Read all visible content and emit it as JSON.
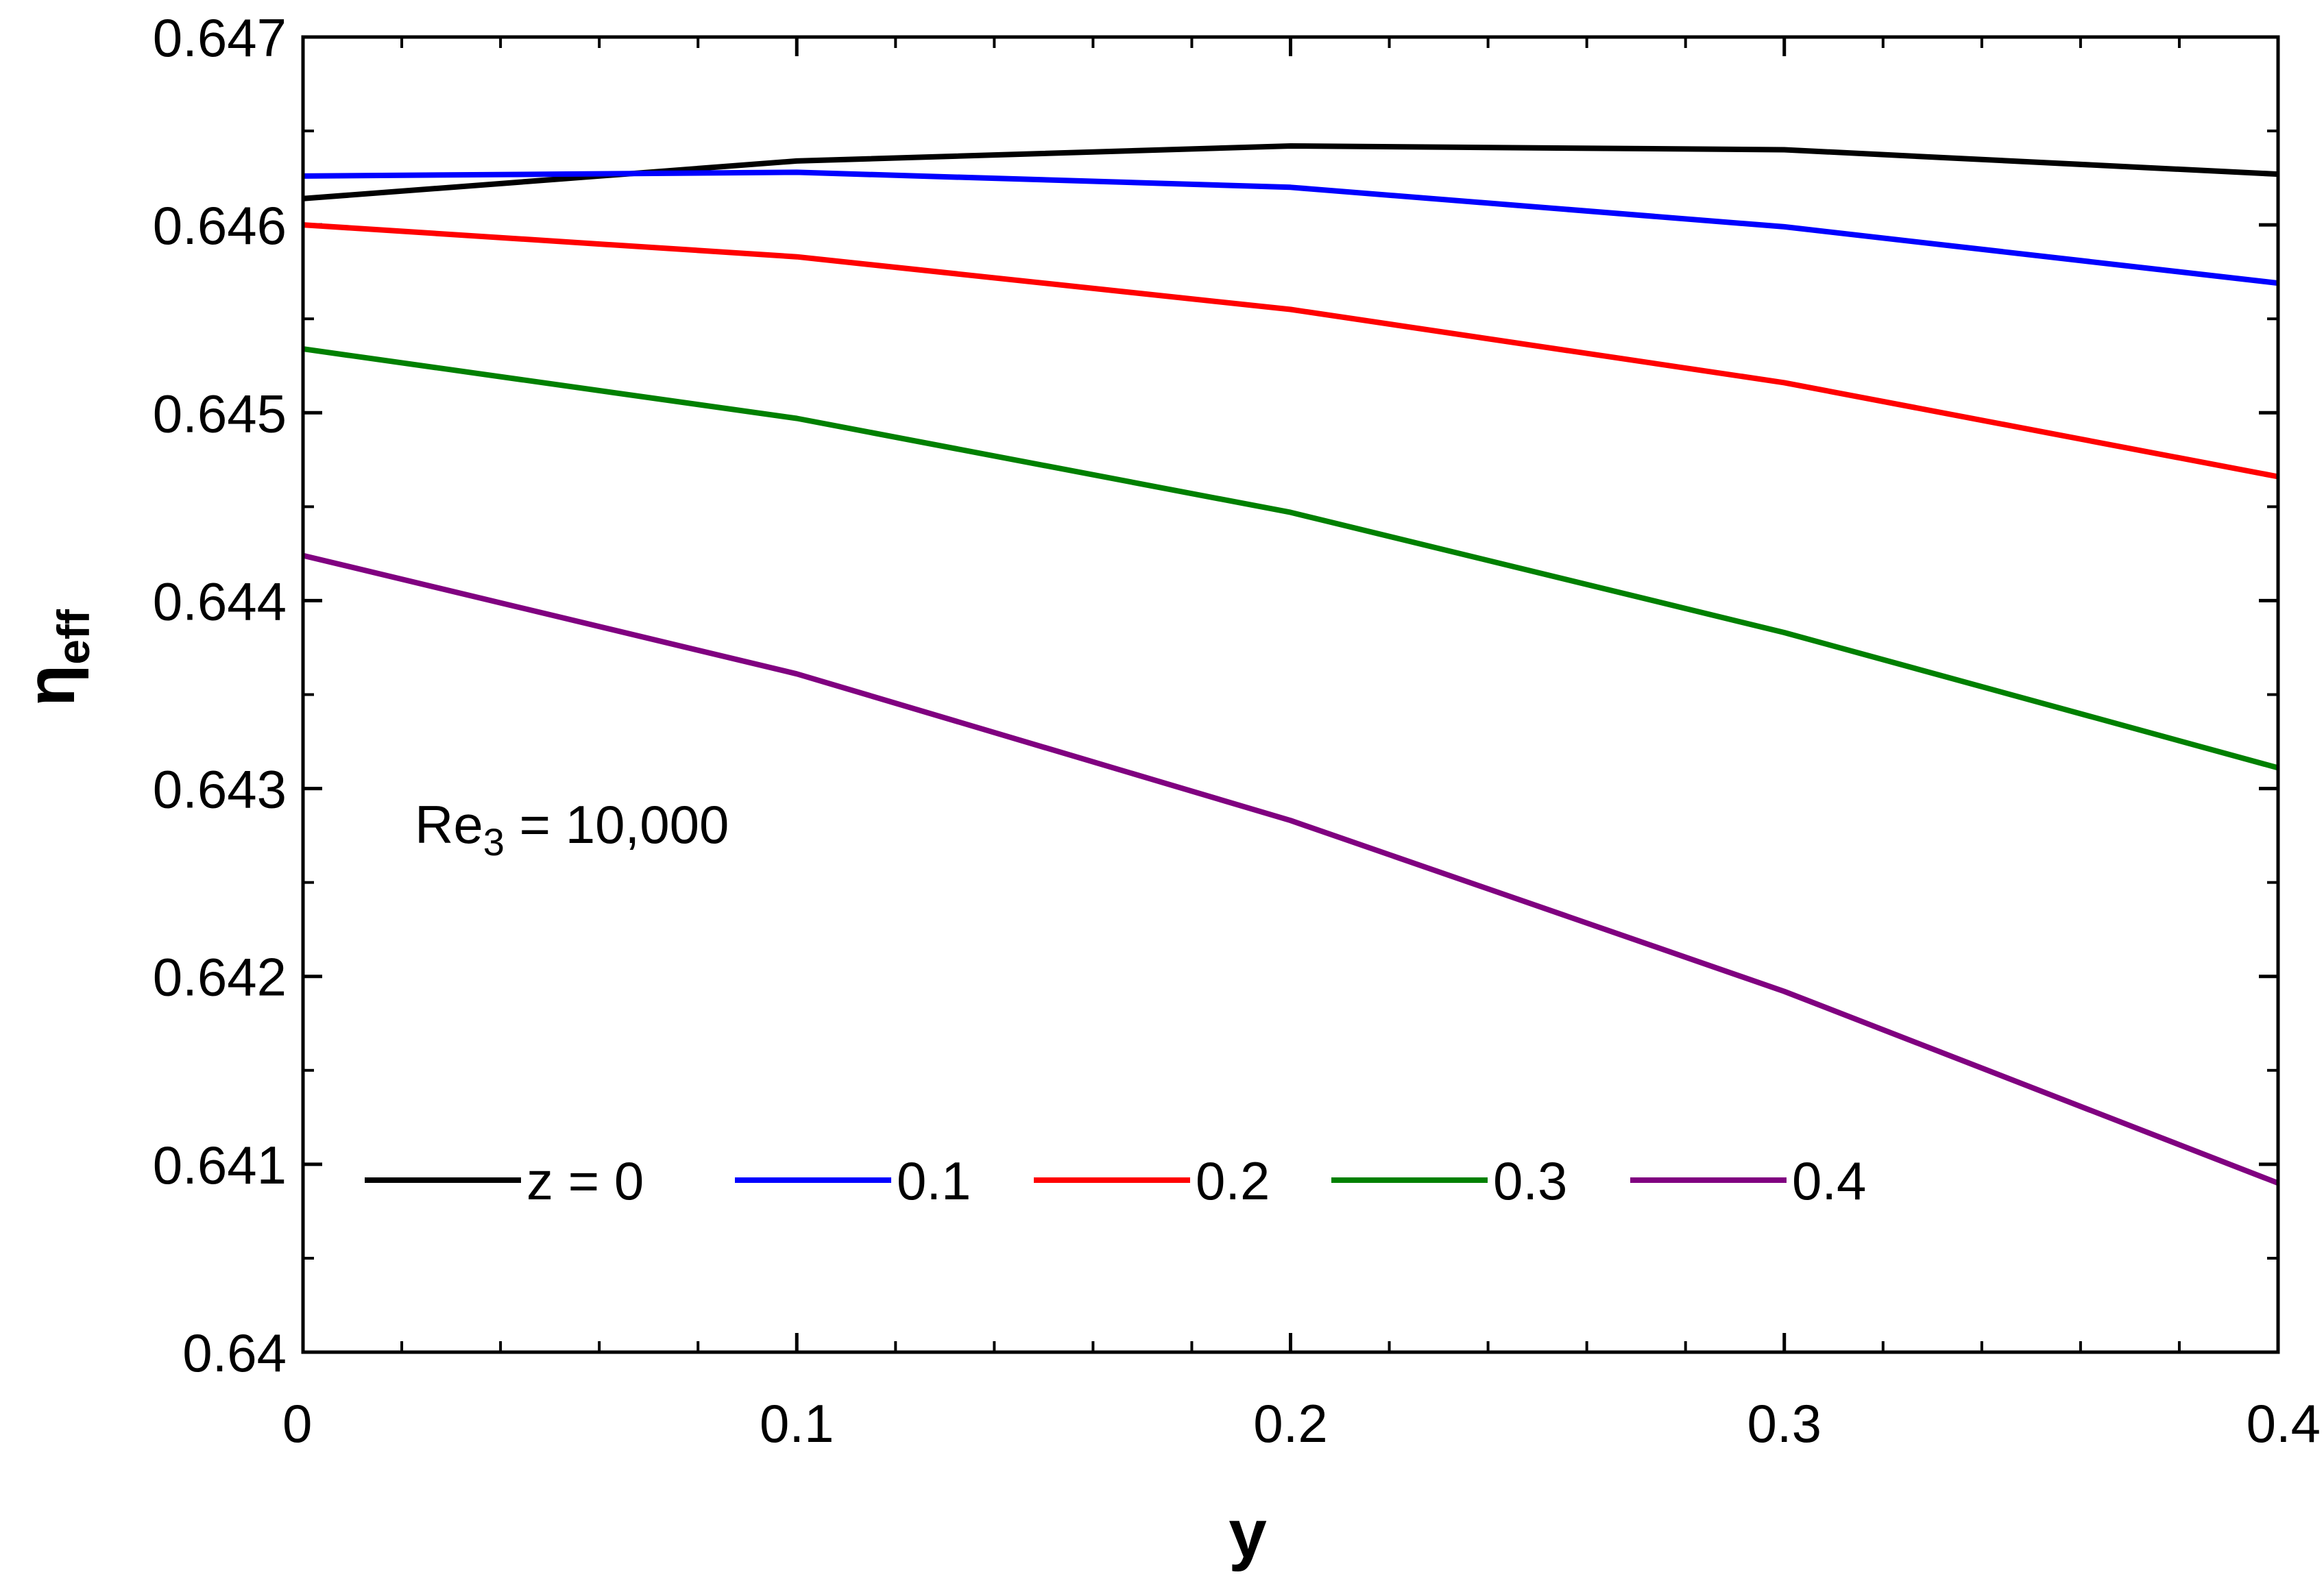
{
  "chart_data": {
    "type": "line",
    "title": "",
    "xlabel": "y",
    "ylabel_main": "η",
    "ylabel_sub": "eff",
    "xlim": [
      0,
      0.4
    ],
    "ylim": [
      0.64,
      0.647
    ],
    "x_ticks": [
      0,
      0.1,
      0.2,
      0.3,
      0.4
    ],
    "x_tick_labels": [
      "0",
      "0.1",
      "0.2",
      "0.3",
      "0.4"
    ],
    "y_ticks": [
      0.64,
      0.641,
      0.642,
      0.643,
      0.644,
      0.645,
      0.646,
      0.647
    ],
    "y_tick_labels": [
      "0.64",
      "0.641",
      "0.642",
      "0.643",
      "0.644",
      "0.645",
      "0.646",
      "0.647"
    ],
    "x_minor_step": 0.02,
    "y_minor_step": 0.0005,
    "grid": false,
    "legend_placement": "bottom-left",
    "annotation": {
      "main": "Re",
      "sub": "3",
      "rest": " = 10,000"
    },
    "x": [
      0,
      0.1,
      0.2,
      0.3,
      0.4
    ],
    "series": [
      {
        "name": "z = 0",
        "color": "#000000",
        "values": [
          0.64614,
          0.64634,
          0.64642,
          0.6464,
          0.64627
        ]
      },
      {
        "name": "0.1",
        "color": "#0000ff",
        "values": [
          0.64626,
          0.64628,
          0.6462,
          0.64599,
          0.64569
        ]
      },
      {
        "name": "0.2",
        "color": "#ff0000",
        "values": [
          0.646,
          0.64583,
          0.64555,
          0.64516,
          0.64466
        ]
      },
      {
        "name": "0.3",
        "color": "#008000",
        "values": [
          0.64534,
          0.64497,
          0.64447,
          0.64383,
          0.64311
        ]
      },
      {
        "name": "0.4",
        "color": "#800080",
        "values": [
          0.64424,
          0.64361,
          0.64283,
          0.64192,
          0.6409
        ]
      }
    ]
  }
}
